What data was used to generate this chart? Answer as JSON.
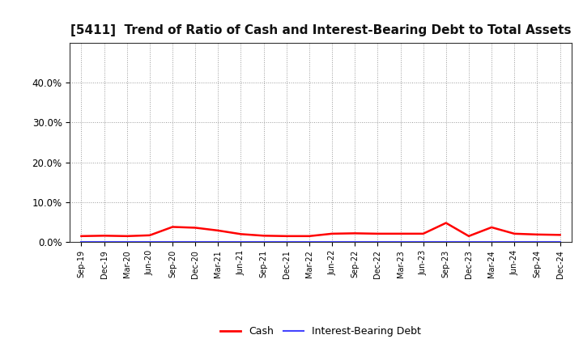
{
  "title": "[5411]  Trend of Ratio of Cash and Interest-Bearing Debt to Total Assets",
  "x_labels": [
    "Sep-19",
    "Dec-19",
    "Mar-20",
    "Jun-20",
    "Sep-20",
    "Dec-20",
    "Mar-21",
    "Jun-21",
    "Sep-21",
    "Dec-21",
    "Mar-22",
    "Jun-22",
    "Sep-22",
    "Dec-22",
    "Mar-23",
    "Jun-23",
    "Sep-23",
    "Dec-23",
    "Mar-24",
    "Jun-24",
    "Sep-24",
    "Dec-24"
  ],
  "cash_values": [
    1.5,
    1.6,
    1.5,
    1.7,
    3.8,
    3.6,
    2.9,
    2.0,
    1.6,
    1.5,
    1.5,
    2.1,
    2.2,
    2.1,
    2.1,
    2.1,
    4.8,
    1.5,
    3.7,
    2.1,
    1.9,
    1.8
  ],
  "debt_values": [
    0.0,
    0.0,
    0.0,
    0.0,
    0.0,
    0.0,
    0.0,
    0.0,
    0.0,
    0.0,
    0.0,
    0.0,
    0.0,
    0.0,
    0.0,
    0.0,
    0.0,
    0.0,
    0.0,
    0.0,
    0.0,
    0.0
  ],
  "cash_color": "#ff0000",
  "debt_color": "#4444ff",
  "ylim": [
    0,
    50
  ],
  "yticks": [
    0,
    10,
    20,
    30,
    40
  ],
  "ytick_labels": [
    "0.0%",
    "10.0%",
    "20.0%",
    "30.0%",
    "40.0%"
  ],
  "background_color": "#ffffff",
  "plot_bg_color": "#ffffff",
  "grid_color": "#999999",
  "title_fontsize": 11,
  "legend_cash": "Cash",
  "legend_debt": "Interest-Bearing Debt"
}
